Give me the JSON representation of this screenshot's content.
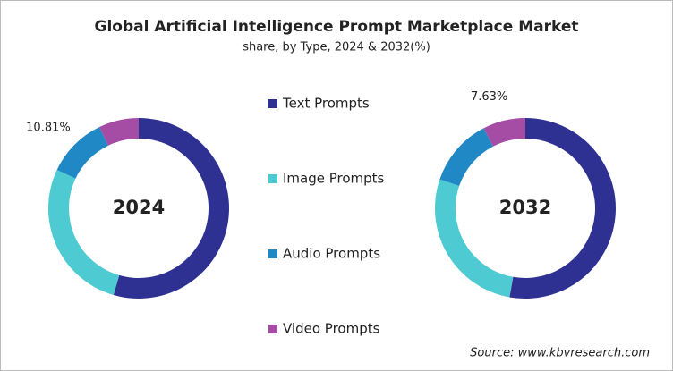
{
  "chart_data": {
    "type": "donut",
    "title": "Global Artificial Intelligence Prompt Marketplace Market",
    "subtitle": "share, by Type, 2024 & 2032(%)",
    "categories": [
      "Text Prompts",
      "Image Prompts",
      "Audio Prompts",
      "Video Prompts"
    ],
    "colors": [
      "#2e3192",
      "#4ecbd2",
      "#1f88c5",
      "#a54ca5"
    ],
    "series": [
      {
        "name": "2024",
        "values": [
          54.5,
          27.5,
          10.81,
          7.19
        ],
        "value_labels": [
          null,
          null,
          "10.81%",
          null
        ]
      },
      {
        "name": "2032",
        "values": [
          52.8,
          27.4,
          12.17,
          7.63
        ],
        "value_labels": [
          null,
          null,
          null,
          "7.63%"
        ]
      }
    ],
    "source": "Source: www.kbvresearch.com"
  }
}
